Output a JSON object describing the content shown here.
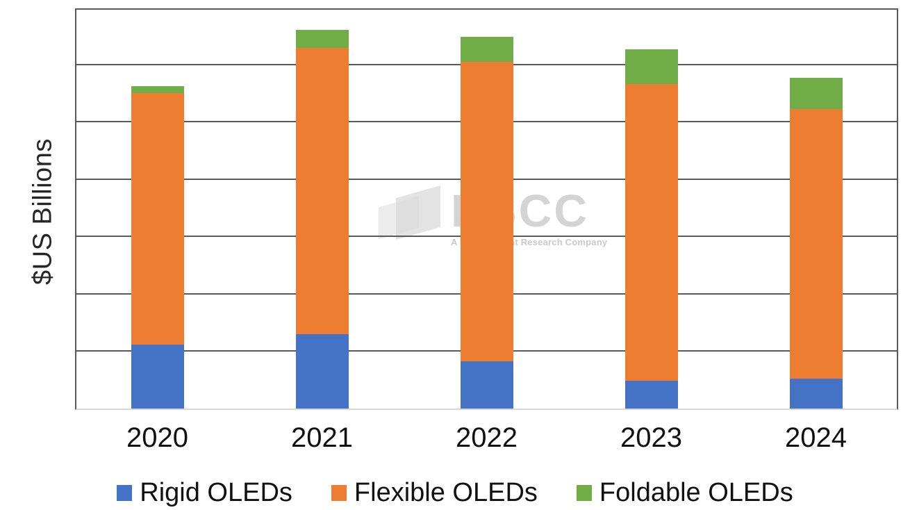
{
  "chart_data": {
    "type": "bar",
    "stacked": true,
    "title": "",
    "categories": [
      "2020",
      "2021",
      "2022",
      "2023",
      "2024"
    ],
    "series": [
      {
        "name": "Rigid OLEDs",
        "color": "#4472C4",
        "values": [
          5.6,
          6.5,
          4.1,
          2.4,
          2.6
        ]
      },
      {
        "name": "Flexible OLEDs",
        "color": "#ED7D31",
        "values": [
          21.9,
          24.9,
          26.1,
          25.9,
          23.5
        ]
      },
      {
        "name": "Foldable OLEDs",
        "color": "#70AD47",
        "values": [
          0.6,
          1.6,
          2.2,
          3.0,
          2.7
        ]
      }
    ],
    "xlabel": "",
    "ylabel": "$US Billions",
    "ylim": [
      0,
      35
    ],
    "gridline_step": 5,
    "y_tick_labels_visible": false,
    "gridlines": "horizontal",
    "legend_position": "bottom",
    "colors": {
      "gridline": "#595959",
      "plot_border": "#595959",
      "bottom_axis": "#d9d9d9",
      "text": "#111111"
    }
  },
  "watermark": {
    "text": "DSCC",
    "tagline": "A Counterpoint Research Company"
  }
}
